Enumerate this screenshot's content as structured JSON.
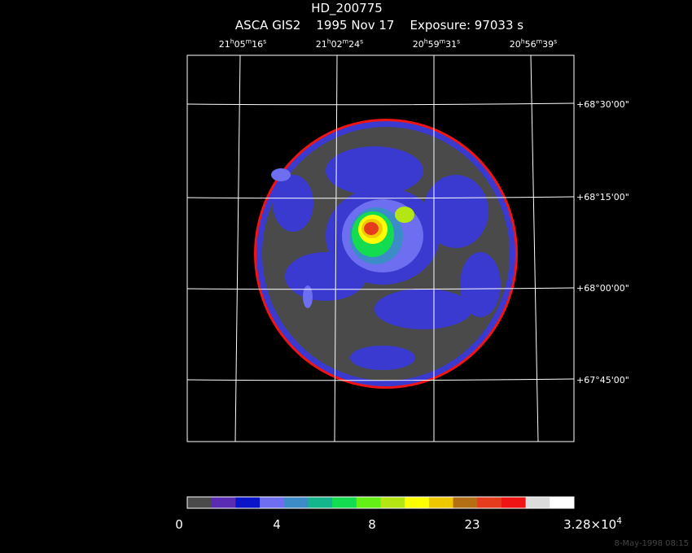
{
  "header": {
    "title": "HD_200775",
    "subtitle": "ASCA GIS2    1995 Nov 17    Exposure: 97033 s"
  },
  "ra_labels": [
    {
      "parts": [
        "21",
        "h",
        "05",
        "m",
        "16",
        "s"
      ]
    },
    {
      "parts": [
        "21",
        "h",
        "02",
        "m",
        "24",
        "s"
      ]
    },
    {
      "parts": [
        "20",
        "h",
        "59",
        "m",
        "31",
        "s"
      ]
    },
    {
      "parts": [
        "20",
        "h",
        "56",
        "m",
        "39",
        "s"
      ]
    }
  ],
  "dec_labels": [
    "+68°30'00\"",
    "+68°15'00\"",
    "+68°00'00\"",
    "+67°45'00\""
  ],
  "colorbar": {
    "colors": [
      "#4a4a4a",
      "#5a2cb4",
      "#0a14c8",
      "#6e6ef0",
      "#3c8cc8",
      "#14b48c",
      "#14dc50",
      "#64f014",
      "#b4e614",
      "#ffff00",
      "#f0c800",
      "#b46e14",
      "#e63c1e",
      "#f01414",
      "#dcdcdc",
      "#ffffff"
    ],
    "labels": [
      {
        "parts": [
          "0"
        ]
      },
      {
        "parts": [
          "4"
        ]
      },
      {
        "parts": [
          "8"
        ]
      },
      {
        "parts": [
          "23"
        ]
      },
      {
        "parts": [
          "3.28×10",
          "4"
        ]
      }
    ]
  },
  "footer": "8-May-1998 08:15"
}
